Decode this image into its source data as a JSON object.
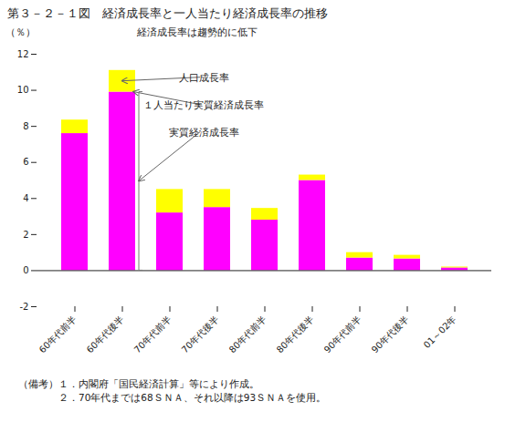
{
  "chart_data": {
    "type": "bar",
    "title": "第３－２－１図　経済成長率と一人当たり経済成長率の推移",
    "subtitle": "経済成長率は趨勢的に低下",
    "ylabel": "（％）",
    "categories": [
      "60年代前半",
      "60年代後半",
      "70年代前半",
      "70年代後半",
      "80年代前半",
      "80年代後半",
      "90年代前半",
      "90年代後半",
      "01～02年"
    ],
    "series": [
      {
        "name": "１人当たり実質経済成長率",
        "color": "#FF00FF",
        "values": [
          7.6,
          9.9,
          3.2,
          3.5,
          2.8,
          5.0,
          0.7,
          0.65,
          0.15
        ]
      },
      {
        "name": "人口成長率",
        "color": "#FFFF00",
        "values": [
          0.75,
          1.2,
          1.3,
          1.0,
          0.65,
          0.3,
          0.3,
          0.2,
          0.05
        ]
      }
    ],
    "stacked": true,
    "ylim": [
      -2,
      12
    ],
    "yticks": [
      -2,
      0,
      2,
      4,
      6,
      8,
      10,
      12
    ],
    "grid": false,
    "annotations": [
      "実質経済成長率"
    ],
    "notes": [
      "（備考）１．内閣府「国民経済計算」等により作成。",
      "　　　　２．70年代までは68ＳＮＡ、それ以降は93ＳＮＡを使用。"
    ]
  }
}
